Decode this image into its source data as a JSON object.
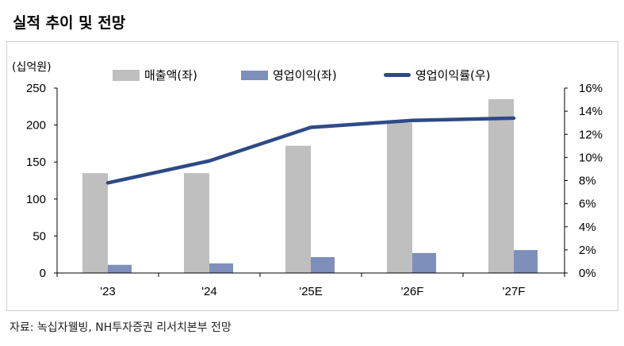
{
  "title": "실적 추이 및 전망",
  "source": "자료: 녹십자웰빙, NH투자증권 리서치본부 전망",
  "chart_data": {
    "type": "bar",
    "unit_label": "(십억원)",
    "categories": [
      "'23",
      "'24",
      "'25E",
      "'26F",
      "'27F"
    ],
    "series": [
      {
        "name": "매출액(좌)",
        "type": "bar",
        "axis": "left",
        "color": "#bfbfbf",
        "values": [
          135,
          135,
          172,
          203,
          235
        ]
      },
      {
        "name": "영업이익(좌)",
        "type": "bar",
        "axis": "left",
        "color": "#7f8fbb",
        "values": [
          11,
          13,
          21.5,
          27,
          31
        ]
      },
      {
        "name": "영업이익률(우)",
        "type": "line",
        "axis": "right",
        "color": "#2e4a86",
        "values": [
          7.8,
          9.7,
          12.6,
          13.2,
          13.4
        ]
      }
    ],
    "left_axis": {
      "ylim": [
        0,
        250
      ],
      "ticks": [
        "0",
        "50",
        "100",
        "150",
        "200",
        "250"
      ]
    },
    "right_axis": {
      "ylim": [
        0,
        16
      ],
      "ticks": [
        "0%",
        "2%",
        "4%",
        "6%",
        "8%",
        "10%",
        "12%",
        "14%",
        "16%"
      ]
    },
    "legend_position": "top",
    "grid": false
  }
}
